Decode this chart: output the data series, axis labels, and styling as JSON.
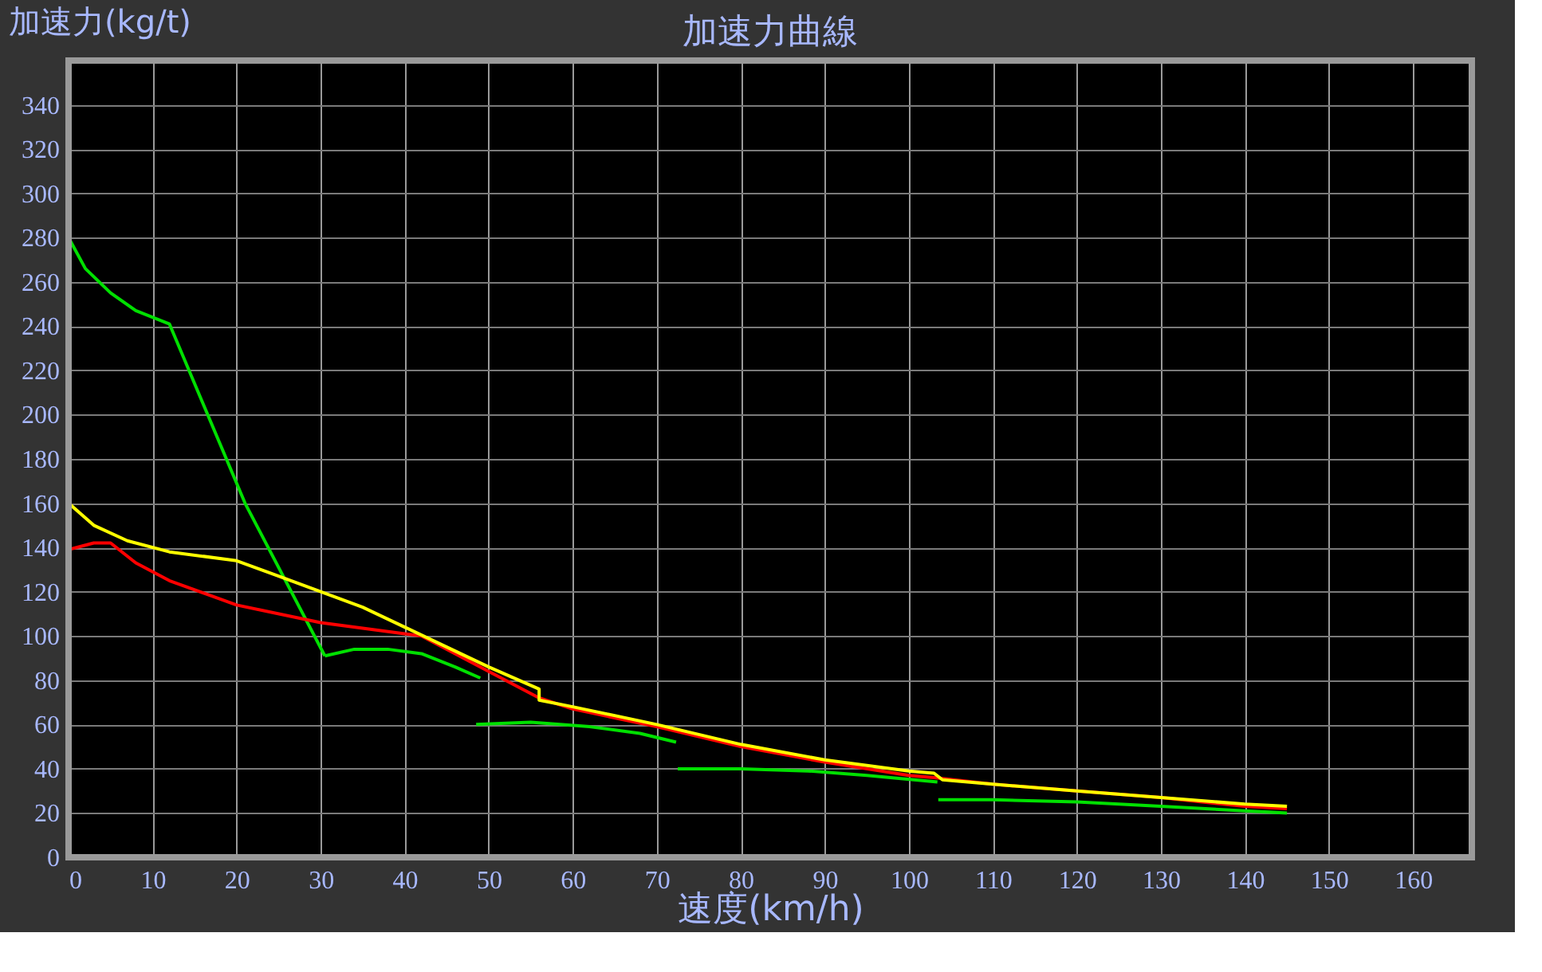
{
  "chart_data": {
    "type": "line",
    "title": "加速力曲線",
    "xlabel": "速度(km/h)",
    "ylabel": "加速力(kg/t)",
    "xlim": [
      0,
      167
    ],
    "ylim": [
      0,
      360
    ],
    "xticks": [
      0,
      10,
      20,
      30,
      40,
      50,
      60,
      70,
      80,
      90,
      100,
      110,
      120,
      130,
      140,
      150,
      160
    ],
    "yticks": [
      0,
      20,
      40,
      60,
      80,
      100,
      120,
      140,
      160,
      180,
      200,
      220,
      240,
      260,
      280,
      300,
      320,
      340
    ],
    "grid": true,
    "legend": false,
    "marker": "none",
    "line_style": "solid",
    "series": [
      {
        "color": "#00e000",
        "x": [
          0,
          2,
          5,
          8,
          12,
          21,
          30.5,
          null,
          30.5,
          34,
          38,
          42,
          46,
          49,
          null,
          48.5,
          55,
          62,
          68,
          72.3,
          null,
          72.5,
          80,
          88,
          95,
          103.4,
          null,
          103.5,
          110,
          120,
          130,
          140,
          145
        ],
        "values": [
          280,
          266,
          255,
          247,
          241,
          160,
          91,
          null,
          91,
          94,
          94,
          92,
          86,
          81,
          null,
          60,
          61,
          59,
          56,
          52,
          null,
          40,
          40,
          39,
          37,
          34,
          null,
          26,
          26,
          25,
          23,
          21,
          20
        ]
      },
      {
        "color": "#ff0000",
        "x": [
          0,
          3,
          5,
          8,
          12,
          20,
          30,
          40,
          42,
          46,
          50,
          56,
          60,
          70,
          80,
          90,
          100,
          103,
          110,
          120,
          130,
          140,
          145
        ],
        "values": [
          139,
          142,
          142,
          133,
          125,
          114,
          106,
          101,
          100,
          92,
          84,
          72,
          67,
          59,
          50,
          43,
          37,
          36,
          33,
          30,
          27,
          23,
          22
        ]
      },
      {
        "color": "#ffff00",
        "x": [
          0,
          3,
          7,
          12,
          20,
          25,
          30,
          35,
          40,
          45,
          50,
          56,
          56,
          60,
          70,
          80,
          90,
          100,
          103,
          104,
          110,
          120,
          130,
          140,
          145
        ],
        "values": [
          160,
          150,
          143,
          138,
          134,
          127,
          120,
          113,
          104,
          95,
          86,
          76,
          71,
          68,
          60,
          51,
          44,
          39,
          38,
          35,
          33,
          30,
          27,
          24,
          23
        ]
      }
    ]
  }
}
